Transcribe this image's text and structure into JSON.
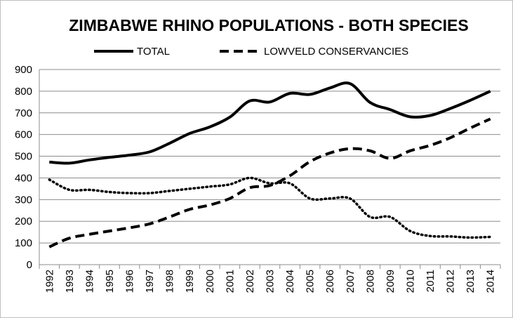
{
  "chart_data": {
    "type": "line",
    "title": "ZIMBABWE RHINO POPULATIONS - BOTH SPECIES",
    "xlabel": "",
    "ylabel": "",
    "x": [
      "1992",
      "1993",
      "1994",
      "1995",
      "1996",
      "1997",
      "1998",
      "1999",
      "2000",
      "2001",
      "2002",
      "2003",
      "2004",
      "2005",
      "2006",
      "2007",
      "2008",
      "2009",
      "2010",
      "2011",
      "2012",
      "2013",
      "2014"
    ],
    "ylim": [
      0,
      900
    ],
    "yticks": [
      "0",
      "100",
      "200",
      "300",
      "400",
      "500",
      "600",
      "700",
      "800",
      "900"
    ],
    "grid": true,
    "legend_position": "top",
    "series": [
      {
        "name": "TOTAL",
        "style": "solid",
        "color": "#000000",
        "values": [
          473,
          468,
          483,
          495,
          505,
          520,
          560,
          605,
          635,
          680,
          755,
          750,
          790,
          785,
          815,
          835,
          748,
          715,
          682,
          688,
          720,
          758,
          800
        ]
      },
      {
        "name": "LOWVELD CONSERVANCIES",
        "style": "dashed",
        "color": "#000000",
        "values": [
          82,
          122,
          140,
          155,
          170,
          188,
          220,
          255,
          275,
          305,
          355,
          365,
          410,
          475,
          515,
          535,
          525,
          490,
          525,
          550,
          585,
          630,
          672
        ]
      },
      {
        "name": "",
        "style": "dotted",
        "color": "#000000",
        "values": [
          392,
          345,
          345,
          335,
          330,
          330,
          340,
          350,
          360,
          370,
          400,
          375,
          375,
          305,
          305,
          305,
          220,
          220,
          155,
          132,
          130,
          125,
          128
        ]
      }
    ]
  }
}
